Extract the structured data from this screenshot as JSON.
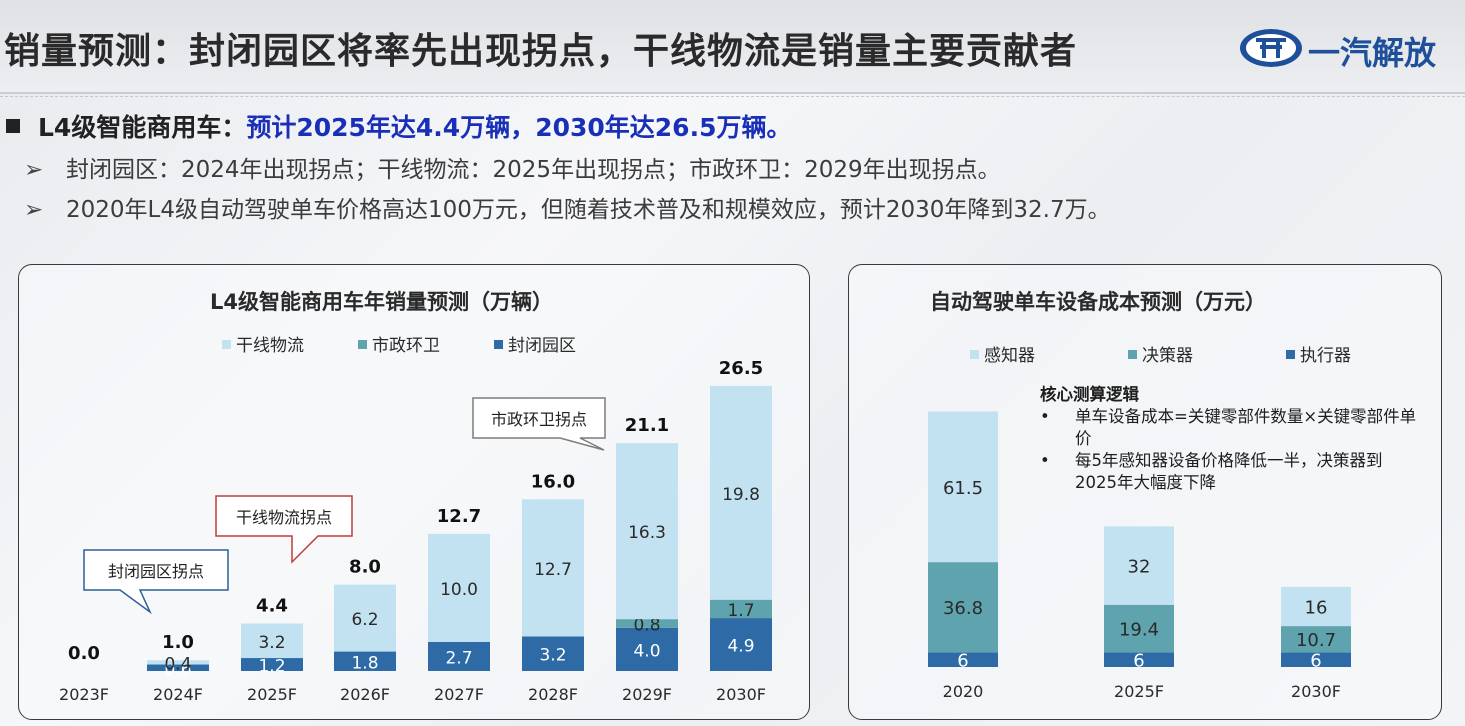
{
  "title": "销量预测：封闭园区将率先出现拐点，干线物流是销量主要贡献者",
  "logo_text": "一汽解放",
  "bullet": {
    "lead": "L4级智能商用车：",
    "highlight": "预计2025年达4.4万辆，2030年达26.5万辆。"
  },
  "sub_bullets": [
    "封闭园区：2024年出现拐点；干线物流：2025年出现拐点；市政环卫：2029年出现拐点。",
    "2020年L4级自动驾驶单车价格高达100万元，但随着技术普及和规模效应，预计2030年降到32.7万。"
  ],
  "colors": {
    "light": "#c3e2f1",
    "mid": "#5ea3ae",
    "dark": "#2d6aa6",
    "title_blue": "#1a2fb8",
    "callout_red": "#c23a3a",
    "callout_blue": "#2d5f97",
    "callout_gray": "#7c7c7c"
  },
  "chart_data": [
    {
      "type": "bar",
      "stacked": true,
      "title": "L4级智能商用车年销量预测（万辆）",
      "categories": [
        "2023F",
        "2024F",
        "2025F",
        "2026F",
        "2027F",
        "2028F",
        "2029F",
        "2030F"
      ],
      "series": [
        {
          "name": "封闭园区",
          "values": [
            0,
            0.6,
            1.2,
            1.8,
            2.7,
            3.2,
            4.0,
            4.9
          ],
          "labels": [
            "",
            "0.6",
            "1.2",
            "1.8",
            "2.7",
            "3.2",
            "4.0",
            "4.9"
          ]
        },
        {
          "name": "市政环卫",
          "values": [
            0,
            0,
            0,
            0,
            0,
            0,
            0.8,
            1.7
          ],
          "labels": [
            "",
            "",
            "",
            "",
            "",
            "",
            "0.8",
            "1.7"
          ]
        },
        {
          "name": "干线物流",
          "values": [
            0,
            0.4,
            3.2,
            6.2,
            10.0,
            12.7,
            16.3,
            19.8
          ],
          "labels": [
            "",
            "0.4",
            "3.2",
            "6.2",
            "10.0",
            "12.7",
            "16.3",
            "19.8"
          ]
        }
      ],
      "totals": [
        "0.0",
        "1.0",
        "4.4",
        "8.0",
        "12.7",
        "16.0",
        "21.1",
        "26.5"
      ],
      "legend": [
        "干线物流",
        "市政环卫",
        "封闭园区"
      ],
      "legend_placement": "top",
      "callouts": [
        {
          "text": "封闭园区拐点",
          "category": "2024F",
          "style": "blue"
        },
        {
          "text": "干线物流拐点",
          "category": "2025F",
          "style": "red"
        },
        {
          "text": "市政环卫拐点",
          "category": "2029F",
          "style": "gray"
        }
      ],
      "ylim": [
        0,
        27
      ],
      "grid": false
    },
    {
      "type": "bar",
      "stacked": true,
      "title": "自动驾驶单车设备成本预测（万元）",
      "categories": [
        "2020",
        "2025F",
        "2030F"
      ],
      "series": [
        {
          "name": "执行器",
          "values": [
            6,
            6,
            6
          ],
          "labels": [
            "6",
            "6",
            "6"
          ]
        },
        {
          "name": "决策器",
          "values": [
            36.8,
            19.4,
            10.7
          ],
          "labels": [
            "36.8",
            "19.4",
            "10.7"
          ]
        },
        {
          "name": "感知器",
          "values": [
            61.5,
            32,
            16
          ],
          "labels": [
            "61.5",
            "32",
            "16"
          ]
        }
      ],
      "legend": [
        "感知器",
        "决策器",
        "执行器"
      ],
      "legend_placement": "top",
      "ylim": [
        0,
        105
      ],
      "grid": false
    }
  ],
  "cost_note": {
    "title": "核心测算逻辑",
    "items": [
      "单车设备成本=关键零部件数量×关键零部件单价",
      "每5年感知器设备价格降低一半，决策器到2025年大幅度下降"
    ]
  }
}
